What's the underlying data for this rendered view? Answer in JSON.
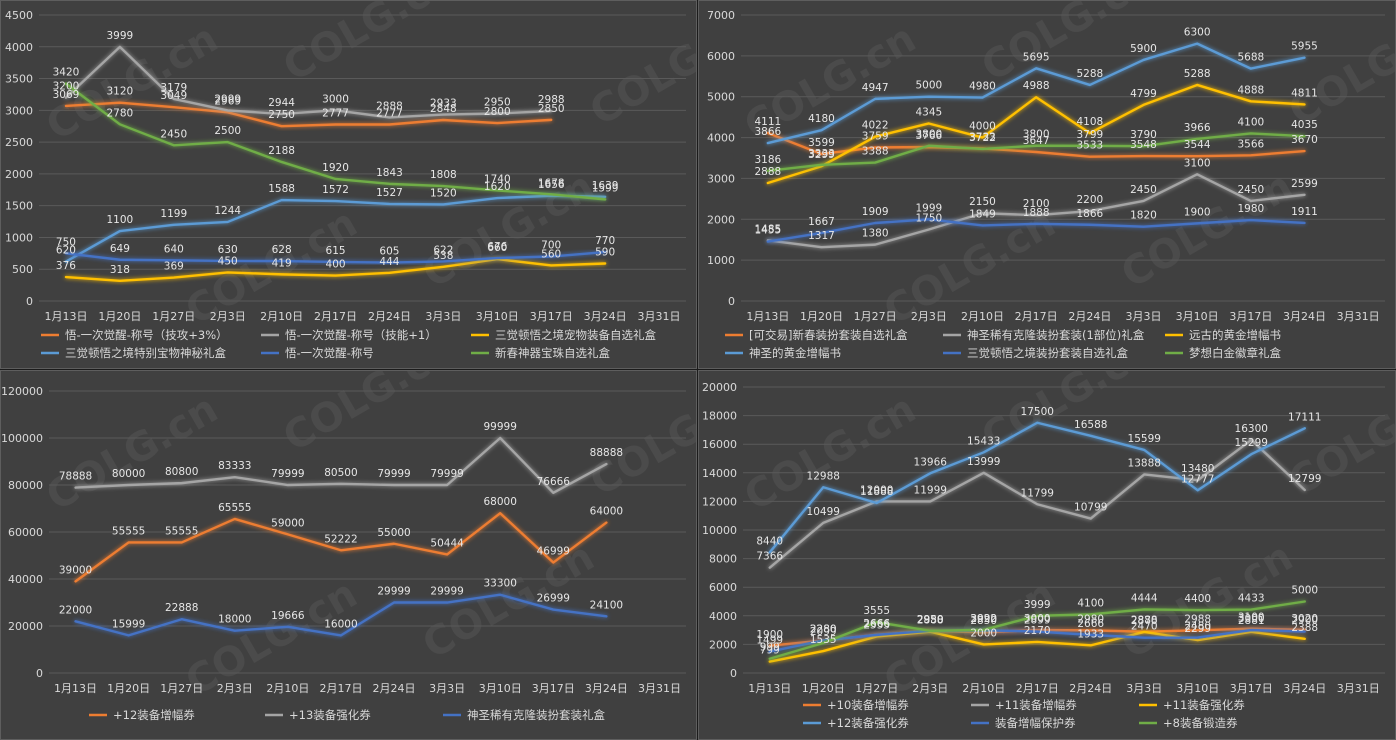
{
  "chart_data": [
    {
      "type": "line",
      "title": "",
      "xlabel": "",
      "ylabel": "",
      "categories": [
        "1月13日",
        "1月20日",
        "1月27日",
        "2月3日",
        "2月10日",
        "2月17日",
        "2月24日",
        "3月3日",
        "3月10日",
        "3月17日",
        "3月24日",
        "3月31日"
      ],
      "ylim": [
        0,
        4500
      ],
      "yticks": [
        "0",
        "500",
        "1000",
        "1500",
        "2000",
        "2500",
        "3000",
        "3500",
        "4000",
        "4500"
      ],
      "grid": true,
      "legend": "bottom",
      "series": [
        {
          "name": "悟-一次觉醒-称号（技攻+3%）",
          "color": "#ed7d31",
          "values": [
            3069,
            3120,
            3049,
            2969,
            2750,
            2777,
            2777,
            2848,
            2800,
            2850,
            null,
            null
          ],
          "labels": [
            "3069",
            "3120",
            "3049",
            "2969",
            "2750",
            "2777",
            "2777",
            "2848",
            "2800",
            "2850",
            "",
            ""
          ]
        },
        {
          "name": "悟-一次觉醒-称号（技能+1）",
          "color": "#a5a5a5",
          "values": [
            3200,
            3999,
            3179,
            2999,
            2944,
            3000,
            2888,
            2933,
            2950,
            2988,
            null,
            null
          ],
          "labels": [
            "3200",
            "3999",
            "3179",
            "2999",
            "2944",
            "3000",
            "2888",
            "2933",
            "2950",
            "2988",
            "",
            ""
          ]
        },
        {
          "name": "三觉顿悟之境宠物装备自选礼盒",
          "color": "#ffc000",
          "values": [
            376,
            318,
            369,
            450,
            419,
            400,
            444,
            538,
            660,
            560,
            590,
            null
          ],
          "labels": [
            "376",
            "318",
            "369",
            "450",
            "419",
            "400",
            "444",
            "538",
            "660",
            "560",
            "590",
            ""
          ]
        },
        {
          "name": "三觉顿悟之境特别宝物神秘礼盒",
          "color": "#5b9bd5",
          "values": [
            620,
            1100,
            1199,
            1244,
            1588,
            1572,
            1527,
            1520,
            1620,
            1656,
            1639,
            null
          ],
          "labels": [
            "620",
            "1100",
            "1199",
            "1244",
            "1588",
            "1572",
            "1527",
            "1520",
            "1620",
            "1656",
            "1639",
            ""
          ]
        },
        {
          "name": "悟-一次觉醒-称号",
          "color": "#4472c4",
          "values": [
            750,
            649,
            640,
            630,
            628,
            615,
            605,
            622,
            676,
            700,
            770,
            null
          ],
          "labels": [
            "750",
            "649",
            "640",
            "630",
            "628",
            "615",
            "605",
            "622",
            "676",
            "700",
            "770",
            ""
          ]
        },
        {
          "name": "新春神器宝珠自选礼盒",
          "color": "#70ad47",
          "values": [
            3420,
            2780,
            2450,
            2500,
            2188,
            1920,
            1843,
            1808,
            1740,
            1678,
            1599,
            null
          ],
          "labels": [
            "3420",
            "2780",
            "2450",
            "2500",
            "2188",
            "1920",
            "1843",
            "1808",
            "1740",
            "1678",
            "1599",
            ""
          ]
        }
      ]
    },
    {
      "type": "line",
      "title": "",
      "xlabel": "",
      "ylabel": "",
      "categories": [
        "1月13日",
        "1月20日",
        "1月27日",
        "2月3日",
        "2月10日",
        "2月17日",
        "2月24日",
        "3月3日",
        "3月10日",
        "3月17日",
        "3月24日",
        "3月31日"
      ],
      "ylim": [
        0,
        7000
      ],
      "yticks": [
        "0",
        "1000",
        "2000",
        "3000",
        "4000",
        "5000",
        "6000",
        "7000"
      ],
      "grid": true,
      "legend": "bottom",
      "series": [
        {
          "name": "[可交易]新春装扮套装自选礼盒",
          "color": "#ed7d31",
          "values": [
            4111,
            3599,
            3759,
            3766,
            3733,
            3647,
            3533,
            3548,
            3544,
            3566,
            3670,
            null
          ],
          "labels": [
            "4111",
            "3599",
            "3759",
            "3766",
            "3733",
            "3647",
            "3533",
            "3548",
            "3544",
            "3566",
            "3670",
            ""
          ]
        },
        {
          "name": "神圣稀有克隆装扮套装(1部位)礼盒",
          "color": "#a5a5a5",
          "values": [
            1485,
            1317,
            1380,
            1750,
            2150,
            2100,
            2200,
            2450,
            3100,
            2450,
            2599,
            null
          ],
          "labels": [
            "1485",
            "1317",
            "1380",
            "1750",
            "2150",
            "2100",
            "2200",
            "2450",
            "3100",
            "2450",
            "2599",
            ""
          ]
        },
        {
          "name": "远古的黄金增幅书",
          "color": "#ffc000",
          "values": [
            2888,
            3299,
            4022,
            4345,
            4000,
            4988,
            4108,
            4799,
            5288,
            4888,
            4811,
            null
          ],
          "labels": [
            "2888",
            "3299",
            "4022",
            "4345",
            "4000",
            "4988",
            "4108",
            "4799",
            "5288",
            "4888",
            "4811",
            ""
          ]
        },
        {
          "name": "神圣的黄金增幅书",
          "color": "#5b9bd5",
          "values": [
            3866,
            4180,
            4947,
            5000,
            4980,
            5695,
            5288,
            5900,
            6300,
            5688,
            5955,
            null
          ],
          "labels": [
            "3866",
            "4180",
            "4947",
            "5000",
            "4980",
            "5695",
            "5288",
            "5900",
            "6300",
            "5688",
            "5955",
            ""
          ]
        },
        {
          "name": "三觉顿悟之境装扮套装自选礼盒",
          "color": "#4472c4",
          "values": [
            1455,
            1667,
            1909,
            1999,
            1849,
            1888,
            1866,
            1820,
            1900,
            1980,
            1911,
            null
          ],
          "labels": [
            "1455",
            "1667",
            "1909",
            "1999",
            "1849",
            "1888",
            "1866",
            "1820",
            "1900",
            "1980",
            "1911",
            ""
          ]
        },
        {
          "name": "梦想白金徽章礼盒",
          "color": "#70ad47",
          "values": [
            3186,
            3333,
            3388,
            3800,
            3722,
            3800,
            3799,
            3790,
            3966,
            4100,
            4035,
            null
          ],
          "labels": [
            "3186",
            "3333",
            "3388",
            "3800",
            "3722",
            "3800",
            "3799",
            "3790",
            "3966",
            "4100",
            "4035",
            ""
          ]
        }
      ]
    },
    {
      "type": "line",
      "title": "",
      "xlabel": "",
      "ylabel": "",
      "categories": [
        "1月13日",
        "1月20日",
        "1月27日",
        "2月3日",
        "2月10日",
        "2月17日",
        "2月24日",
        "3月3日",
        "3月10日",
        "3月17日",
        "3月24日",
        "3月31日"
      ],
      "ylim": [
        0,
        120000
      ],
      "yticks": [
        "0",
        "20000",
        "40000",
        "60000",
        "80000",
        "100000",
        "120000"
      ],
      "grid": true,
      "legend": "bottom",
      "series": [
        {
          "name": "+12装备增幅券",
          "color": "#ed7d31",
          "values": [
            39000,
            55555,
            55555,
            65555,
            59000,
            52222,
            55000,
            50444,
            68000,
            46999,
            64000,
            null
          ],
          "labels": [
            "39000",
            "55555",
            "55555",
            "65555",
            "59000",
            "52222",
            "55000",
            "50444",
            "68000",
            "46999",
            "64000",
            ""
          ]
        },
        {
          "name": "+13装备强化券",
          "color": "#a5a5a5",
          "values": [
            78888,
            80000,
            80800,
            83333,
            79999,
            80500,
            79999,
            79999,
            99999,
            76666,
            88888,
            null
          ],
          "labels": [
            "78888",
            "80000",
            "80800",
            "83333",
            "79999",
            "80500",
            "79999",
            "79999",
            "99999",
            "76666",
            "88888",
            ""
          ]
        },
        {
          "name": "神圣稀有克隆装扮套装礼盒",
          "color": "#4472c4",
          "values": [
            22000,
            15999,
            22888,
            18000,
            19666,
            16000,
            29999,
            29999,
            33300,
            26999,
            24100,
            null
          ],
          "labels": [
            "22000",
            "15999",
            "22888",
            "18000",
            "19666",
            "16000",
            "29999",
            "29999",
            "33300",
            "26999",
            "24100",
            ""
          ]
        }
      ]
    },
    {
      "type": "line",
      "title": "",
      "xlabel": "",
      "ylabel": "",
      "categories": [
        "1月13日",
        "1月20日",
        "1月27日",
        "2月3日",
        "2月10日",
        "2月17日",
        "2月24日",
        "3月3日",
        "3月10日",
        "3月17日",
        "3月24日",
        "3月31日"
      ],
      "ylim": [
        0,
        20000
      ],
      "yticks": [
        "0",
        "2000",
        "4000",
        "6000",
        "8000",
        "10000",
        "12000",
        "14000",
        "16000",
        "18000",
        "20000"
      ],
      "grid": true,
      "legend": "bottom",
      "series": [
        {
          "name": "+10装备增幅券",
          "color": "#ed7d31",
          "values": [
            1900,
            2280,
            2666,
            2950,
            2850,
            3000,
            2980,
            2888,
            2988,
            3100,
            3020,
            null
          ],
          "labels": [
            "1900",
            "2280",
            "2666",
            "2950",
            "2850",
            "3000",
            "2980",
            "2888",
            "2988",
            "3100",
            "3020",
            ""
          ]
        },
        {
          "name": "+11装备增幅券",
          "color": "#a5a5a5",
          "values": [
            7366,
            10499,
            12000,
            11999,
            13999,
            11799,
            10799,
            13888,
            13480,
            16300,
            12799,
            null
          ],
          "labels": [
            "7366",
            "10499",
            "12000",
            "11999",
            "13999",
            "11799",
            "10799",
            "13888",
            "13480",
            "16300",
            "12799",
            ""
          ]
        },
        {
          "name": "+11装备强化券",
          "color": "#ffc000",
          "values": [
            799,
            1535,
            2555,
            2888,
            2000,
            2170,
            1933,
            2870,
            2299,
            2881,
            2388,
            null
          ],
          "labels": [
            "799",
            "1535",
            "2555",
            "2888",
            "2000",
            "2170",
            "1933",
            "2870",
            "2299",
            "2881",
            "2388",
            ""
          ]
        },
        {
          "name": "+12装备强化券",
          "color": "#5b9bd5",
          "values": [
            8440,
            12988,
            11888,
            13966,
            15433,
            17500,
            16588,
            15599,
            12777,
            15299,
            17111,
            null
          ],
          "labels": [
            "8440",
            "12988",
            "11888",
            "13966",
            "15433",
            "17500",
            "16588",
            "15599",
            "12777",
            "15299",
            "17111",
            ""
          ]
        },
        {
          "name": "装备增幅保护券",
          "color": "#4472c4",
          "values": [
            1499,
            2280,
            2666,
            2950,
            2990,
            2899,
            2666,
            2470,
            2480,
            3000,
            2900,
            null
          ],
          "labels": [
            "1499",
            "2280",
            "2666",
            "2950",
            "2990",
            "2899",
            "2666",
            "2470",
            "2480",
            "3000",
            "2900",
            ""
          ]
        },
        {
          "name": "+8装备锻造券",
          "color": "#70ad47",
          "values": [
            999,
            2099,
            3555,
            2950,
            3022,
            3999,
            4100,
            4444,
            4400,
            4433,
            5000,
            null
          ],
          "labels": [
            "999",
            "2099",
            "3555",
            "2950",
            "3022",
            "3999",
            "4100",
            "4444",
            "4400",
            "4433",
            "5000",
            ""
          ]
        }
      ]
    }
  ],
  "watermark": "COLG.cn"
}
